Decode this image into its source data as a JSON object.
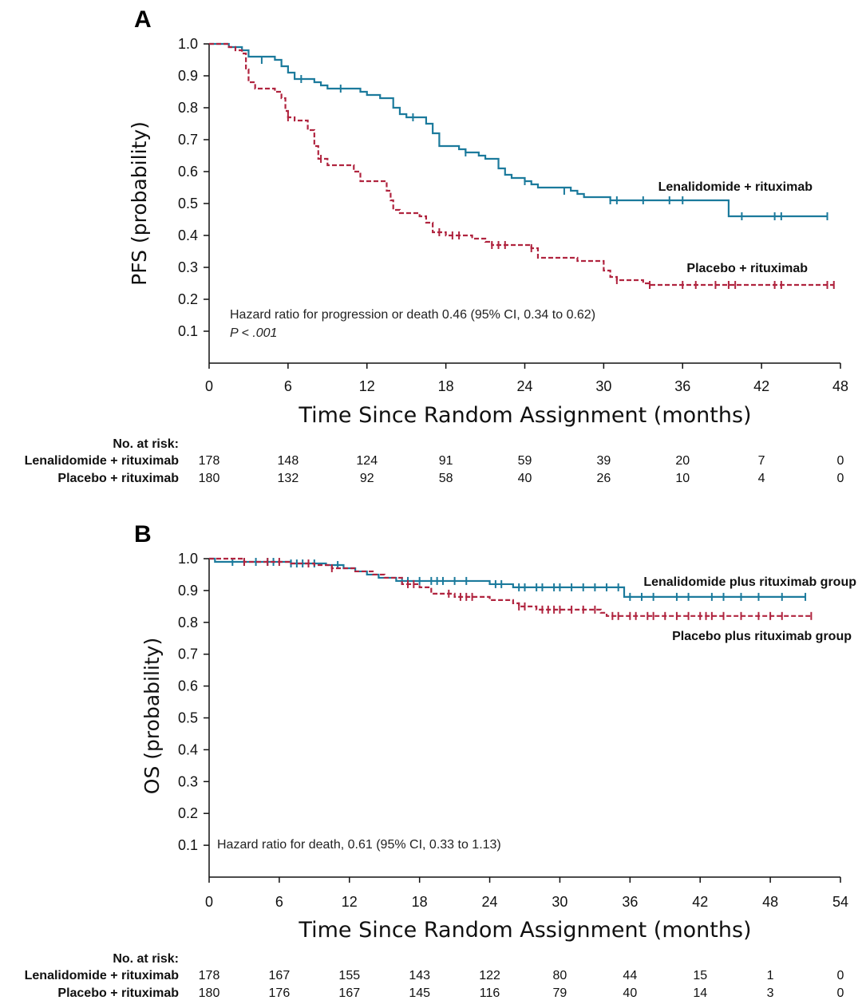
{
  "chart_data": [
    {
      "type": "line",
      "panel": "A",
      "ylabel": "PFS (probability)",
      "xlabel": "Time Since Random Assignment (months)",
      "xlim": [
        0,
        48
      ],
      "ylim": [
        0,
        1.0
      ],
      "x_ticks": [
        "0",
        "6",
        "12",
        "18",
        "24",
        "30",
        "36",
        "42",
        "48"
      ],
      "y_ticks": [
        "0.1",
        "0.2",
        "0.3",
        "0.4",
        "0.5",
        "0.6",
        "0.7",
        "0.8",
        "0.9",
        "1.0"
      ],
      "annotation_lines": [
        "Hazard ratio for progression or death 0.46 (95% CI, 0.34 to 0.62)",
        "P < .001"
      ],
      "series": [
        {
          "name": "Lenalidomide + rituximab",
          "color": "#1b7a9c",
          "dashed": false,
          "steps": [
            [
              0,
              1.0
            ],
            [
              1.5,
              0.99
            ],
            [
              2.5,
              0.98
            ],
            [
              3.0,
              0.96
            ],
            [
              5.0,
              0.95
            ],
            [
              5.5,
              0.93
            ],
            [
              6.0,
              0.91
            ],
            [
              6.5,
              0.89
            ],
            [
              8.0,
              0.88
            ],
            [
              8.5,
              0.87
            ],
            [
              9.0,
              0.86
            ],
            [
              11.5,
              0.85
            ],
            [
              12.0,
              0.84
            ],
            [
              13.0,
              0.83
            ],
            [
              14.0,
              0.8
            ],
            [
              14.5,
              0.78
            ],
            [
              15.0,
              0.77
            ],
            [
              16.5,
              0.75
            ],
            [
              17.0,
              0.72
            ],
            [
              17.5,
              0.68
            ],
            [
              19.0,
              0.67
            ],
            [
              19.5,
              0.66
            ],
            [
              20.5,
              0.65
            ],
            [
              21.0,
              0.64
            ],
            [
              22.0,
              0.61
            ],
            [
              22.5,
              0.59
            ],
            [
              23.0,
              0.58
            ],
            [
              24.0,
              0.57
            ],
            [
              24.5,
              0.56
            ],
            [
              25.0,
              0.55
            ],
            [
              27.5,
              0.54
            ],
            [
              28.0,
              0.53
            ],
            [
              28.5,
              0.52
            ],
            [
              30.5,
              0.51
            ],
            [
              39.5,
              0.46
            ],
            [
              47.0,
              0.46
            ]
          ],
          "censors": [
            [
              4.0,
              0.95
            ],
            [
              7.0,
              0.89
            ],
            [
              10.0,
              0.86
            ],
            [
              15.5,
              0.77
            ],
            [
              19.5,
              0.66
            ],
            [
              24.0,
              0.57
            ],
            [
              27.0,
              0.54
            ],
            [
              30.5,
              0.51
            ],
            [
              31.0,
              0.51
            ],
            [
              33.0,
              0.51
            ],
            [
              35.0,
              0.51
            ],
            [
              36.0,
              0.51
            ],
            [
              40.5,
              0.46
            ],
            [
              43.0,
              0.46
            ],
            [
              43.5,
              0.46
            ],
            [
              47.0,
              0.46
            ]
          ]
        },
        {
          "name": "Placebo + rituximab",
          "color": "#b0243f",
          "dashed": true,
          "steps": [
            [
              0,
              1.0
            ],
            [
              1.5,
              0.99
            ],
            [
              2.0,
              0.98
            ],
            [
              2.5,
              0.97
            ],
            [
              2.8,
              0.92
            ],
            [
              3.0,
              0.88
            ],
            [
              3.5,
              0.86
            ],
            [
              5.0,
              0.85
            ],
            [
              5.5,
              0.83
            ],
            [
              5.8,
              0.79
            ],
            [
              6.0,
              0.77
            ],
            [
              6.5,
              0.76
            ],
            [
              7.5,
              0.73
            ],
            [
              8.0,
              0.68
            ],
            [
              8.3,
              0.64
            ],
            [
              9.0,
              0.62
            ],
            [
              11.0,
              0.6
            ],
            [
              11.5,
              0.57
            ],
            [
              13.5,
              0.54
            ],
            [
              13.8,
              0.51
            ],
            [
              14.0,
              0.48
            ],
            [
              14.5,
              0.47
            ],
            [
              16.0,
              0.46
            ],
            [
              16.5,
              0.44
            ],
            [
              17.0,
              0.41
            ],
            [
              18.0,
              0.4
            ],
            [
              20.0,
              0.39
            ],
            [
              21.0,
              0.38
            ],
            [
              21.5,
              0.37
            ],
            [
              24.5,
              0.36
            ],
            [
              25.0,
              0.33
            ],
            [
              28.0,
              0.32
            ],
            [
              30.0,
              0.29
            ],
            [
              30.5,
              0.27
            ],
            [
              31.0,
              0.26
            ],
            [
              33.0,
              0.25
            ],
            [
              33.5,
              0.245
            ],
            [
              47.5,
              0.245
            ]
          ],
          "censors": [
            [
              6.0,
              0.77
            ],
            [
              8.5,
              0.64
            ],
            [
              17.5,
              0.41
            ],
            [
              18.5,
              0.4
            ],
            [
              19.0,
              0.4
            ],
            [
              21.5,
              0.37
            ],
            [
              22.0,
              0.37
            ],
            [
              22.5,
              0.37
            ],
            [
              24.5,
              0.36
            ],
            [
              31.0,
              0.26
            ],
            [
              33.5,
              0.245
            ],
            [
              36.0,
              0.245
            ],
            [
              37.0,
              0.245
            ],
            [
              38.5,
              0.245
            ],
            [
              39.5,
              0.245
            ],
            [
              40.0,
              0.245
            ],
            [
              43.0,
              0.245
            ],
            [
              43.5,
              0.245
            ],
            [
              47.0,
              0.245
            ],
            [
              47.5,
              0.245
            ]
          ]
        }
      ],
      "labels": {
        "treatment": "Lenalidomide + rituximab",
        "placebo": "Placebo + rituximab"
      },
      "risk_table": {
        "title": "No. at risk:",
        "rows": [
          {
            "label": "Lenalidomide + rituximab",
            "values": [
              "178",
              "148",
              "124",
              "91",
              "59",
              "39",
              "20",
              "7",
              "0"
            ]
          },
          {
            "label": "Placebo + rituximab",
            "values": [
              "180",
              "132",
              "92",
              "58",
              "40",
              "26",
              "10",
              "4",
              "0"
            ]
          }
        ]
      }
    },
    {
      "type": "line",
      "panel": "B",
      "ylabel": "OS (probability)",
      "xlabel": "Time Since Random Assignment (months)",
      "xlim": [
        0,
        54
      ],
      "ylim": [
        0,
        1.0
      ],
      "x_ticks": [
        "0",
        "6",
        "12",
        "18",
        "24",
        "30",
        "36",
        "42",
        "48",
        "54"
      ],
      "y_ticks": [
        "0.1",
        "0.2",
        "0.3",
        "0.4",
        "0.5",
        "0.6",
        "0.7",
        "0.8",
        "0.9",
        "1.0"
      ],
      "annotation_lines": [
        "Hazard ratio for death, 0.61 (95% CI, 0.33 to 1.13)"
      ],
      "series": [
        {
          "name": "Lenalidomide plus rituximab group",
          "color": "#1b7a9c",
          "dashed": false,
          "steps": [
            [
              0,
              1.0
            ],
            [
              0.5,
              0.99
            ],
            [
              7.0,
              0.985
            ],
            [
              10.0,
              0.98
            ],
            [
              11.5,
              0.97
            ],
            [
              12.5,
              0.96
            ],
            [
              13.5,
              0.95
            ],
            [
              14.5,
              0.94
            ],
            [
              16.0,
              0.93
            ],
            [
              24.0,
              0.92
            ],
            [
              26.0,
              0.91
            ],
            [
              35.5,
              0.88
            ],
            [
              51.0,
              0.88
            ]
          ],
          "censors": [
            [
              2.0,
              0.99
            ],
            [
              3.0,
              0.99
            ],
            [
              4.0,
              0.99
            ],
            [
              5.0,
              0.99
            ],
            [
              5.5,
              0.99
            ],
            [
              7.0,
              0.985
            ],
            [
              7.5,
              0.985
            ],
            [
              8.0,
              0.985
            ],
            [
              9.0,
              0.985
            ],
            [
              11.0,
              0.98
            ],
            [
              16.5,
              0.93
            ],
            [
              17.0,
              0.93
            ],
            [
              18.0,
              0.93
            ],
            [
              19.0,
              0.93
            ],
            [
              19.5,
              0.93
            ],
            [
              20.0,
              0.93
            ],
            [
              21.0,
              0.93
            ],
            [
              22.0,
              0.93
            ],
            [
              24.5,
              0.92
            ],
            [
              25.0,
              0.92
            ],
            [
              26.5,
              0.91
            ],
            [
              27.0,
              0.91
            ],
            [
              28.0,
              0.91
            ],
            [
              28.5,
              0.91
            ],
            [
              29.5,
              0.91
            ],
            [
              30.0,
              0.91
            ],
            [
              31.0,
              0.91
            ],
            [
              32.0,
              0.91
            ],
            [
              33.0,
              0.91
            ],
            [
              34.0,
              0.91
            ],
            [
              35.0,
              0.91
            ],
            [
              36.0,
              0.88
            ],
            [
              37.0,
              0.88
            ],
            [
              38.0,
              0.88
            ],
            [
              40.0,
              0.88
            ],
            [
              41.0,
              0.88
            ],
            [
              43.0,
              0.88
            ],
            [
              44.0,
              0.88
            ],
            [
              45.5,
              0.88
            ],
            [
              47.0,
              0.88
            ],
            [
              49.0,
              0.88
            ],
            [
              51.0,
              0.88
            ]
          ]
        },
        {
          "name": "Placebo plus rituximab group",
          "color": "#b0243f",
          "dashed": true,
          "steps": [
            [
              0,
              1.0
            ],
            [
              3.0,
              0.99
            ],
            [
              7.0,
              0.985
            ],
            [
              9.0,
              0.98
            ],
            [
              10.5,
              0.97
            ],
            [
              12.5,
              0.96
            ],
            [
              14.0,
              0.95
            ],
            [
              15.0,
              0.94
            ],
            [
              16.5,
              0.92
            ],
            [
              18.0,
              0.91
            ],
            [
              19.0,
              0.89
            ],
            [
              21.0,
              0.88
            ],
            [
              24.0,
              0.87
            ],
            [
              26.0,
              0.86
            ],
            [
              26.5,
              0.85
            ],
            [
              28.0,
              0.84
            ],
            [
              33.5,
              0.83
            ],
            [
              34.0,
              0.82
            ],
            [
              51.5,
              0.82
            ]
          ],
          "censors": [
            [
              3.0,
              0.99
            ],
            [
              5.0,
              0.99
            ],
            [
              6.0,
              0.99
            ],
            [
              8.5,
              0.985
            ],
            [
              10.5,
              0.97
            ],
            [
              17.0,
              0.92
            ],
            [
              17.5,
              0.92
            ],
            [
              20.5,
              0.89
            ],
            [
              21.5,
              0.88
            ],
            [
              22.0,
              0.88
            ],
            [
              22.5,
              0.88
            ],
            [
              26.5,
              0.85
            ],
            [
              27.0,
              0.85
            ],
            [
              28.5,
              0.84
            ],
            [
              29.0,
              0.84
            ],
            [
              29.5,
              0.84
            ],
            [
              30.0,
              0.84
            ],
            [
              31.0,
              0.84
            ],
            [
              32.0,
              0.84
            ],
            [
              33.0,
              0.84
            ],
            [
              34.5,
              0.82
            ],
            [
              35.0,
              0.82
            ],
            [
              36.0,
              0.82
            ],
            [
              36.5,
              0.82
            ],
            [
              37.5,
              0.82
            ],
            [
              38.0,
              0.82
            ],
            [
              39.0,
              0.82
            ],
            [
              40.0,
              0.82
            ],
            [
              41.0,
              0.82
            ],
            [
              42.0,
              0.82
            ],
            [
              42.5,
              0.82
            ],
            [
              43.0,
              0.82
            ],
            [
              44.0,
              0.82
            ],
            [
              45.5,
              0.82
            ],
            [
              47.0,
              0.82
            ],
            [
              48.0,
              0.82
            ],
            [
              49.0,
              0.82
            ],
            [
              51.5,
              0.82
            ]
          ]
        }
      ],
      "labels": {
        "treatment": "Lenalidomide plus rituximab group",
        "placebo": "Placebo plus rituximab group"
      },
      "risk_table": {
        "title": "No. at risk:",
        "rows": [
          {
            "label": "Lenalidomide + rituximab",
            "values": [
              "178",
              "167",
              "155",
              "143",
              "122",
              "80",
              "44",
              "15",
              "1",
              "0"
            ]
          },
          {
            "label": "Placebo + rituximab",
            "values": [
              "180",
              "176",
              "167",
              "145",
              "116",
              "79",
              "40",
              "14",
              "3",
              "0"
            ]
          }
        ]
      }
    }
  ]
}
